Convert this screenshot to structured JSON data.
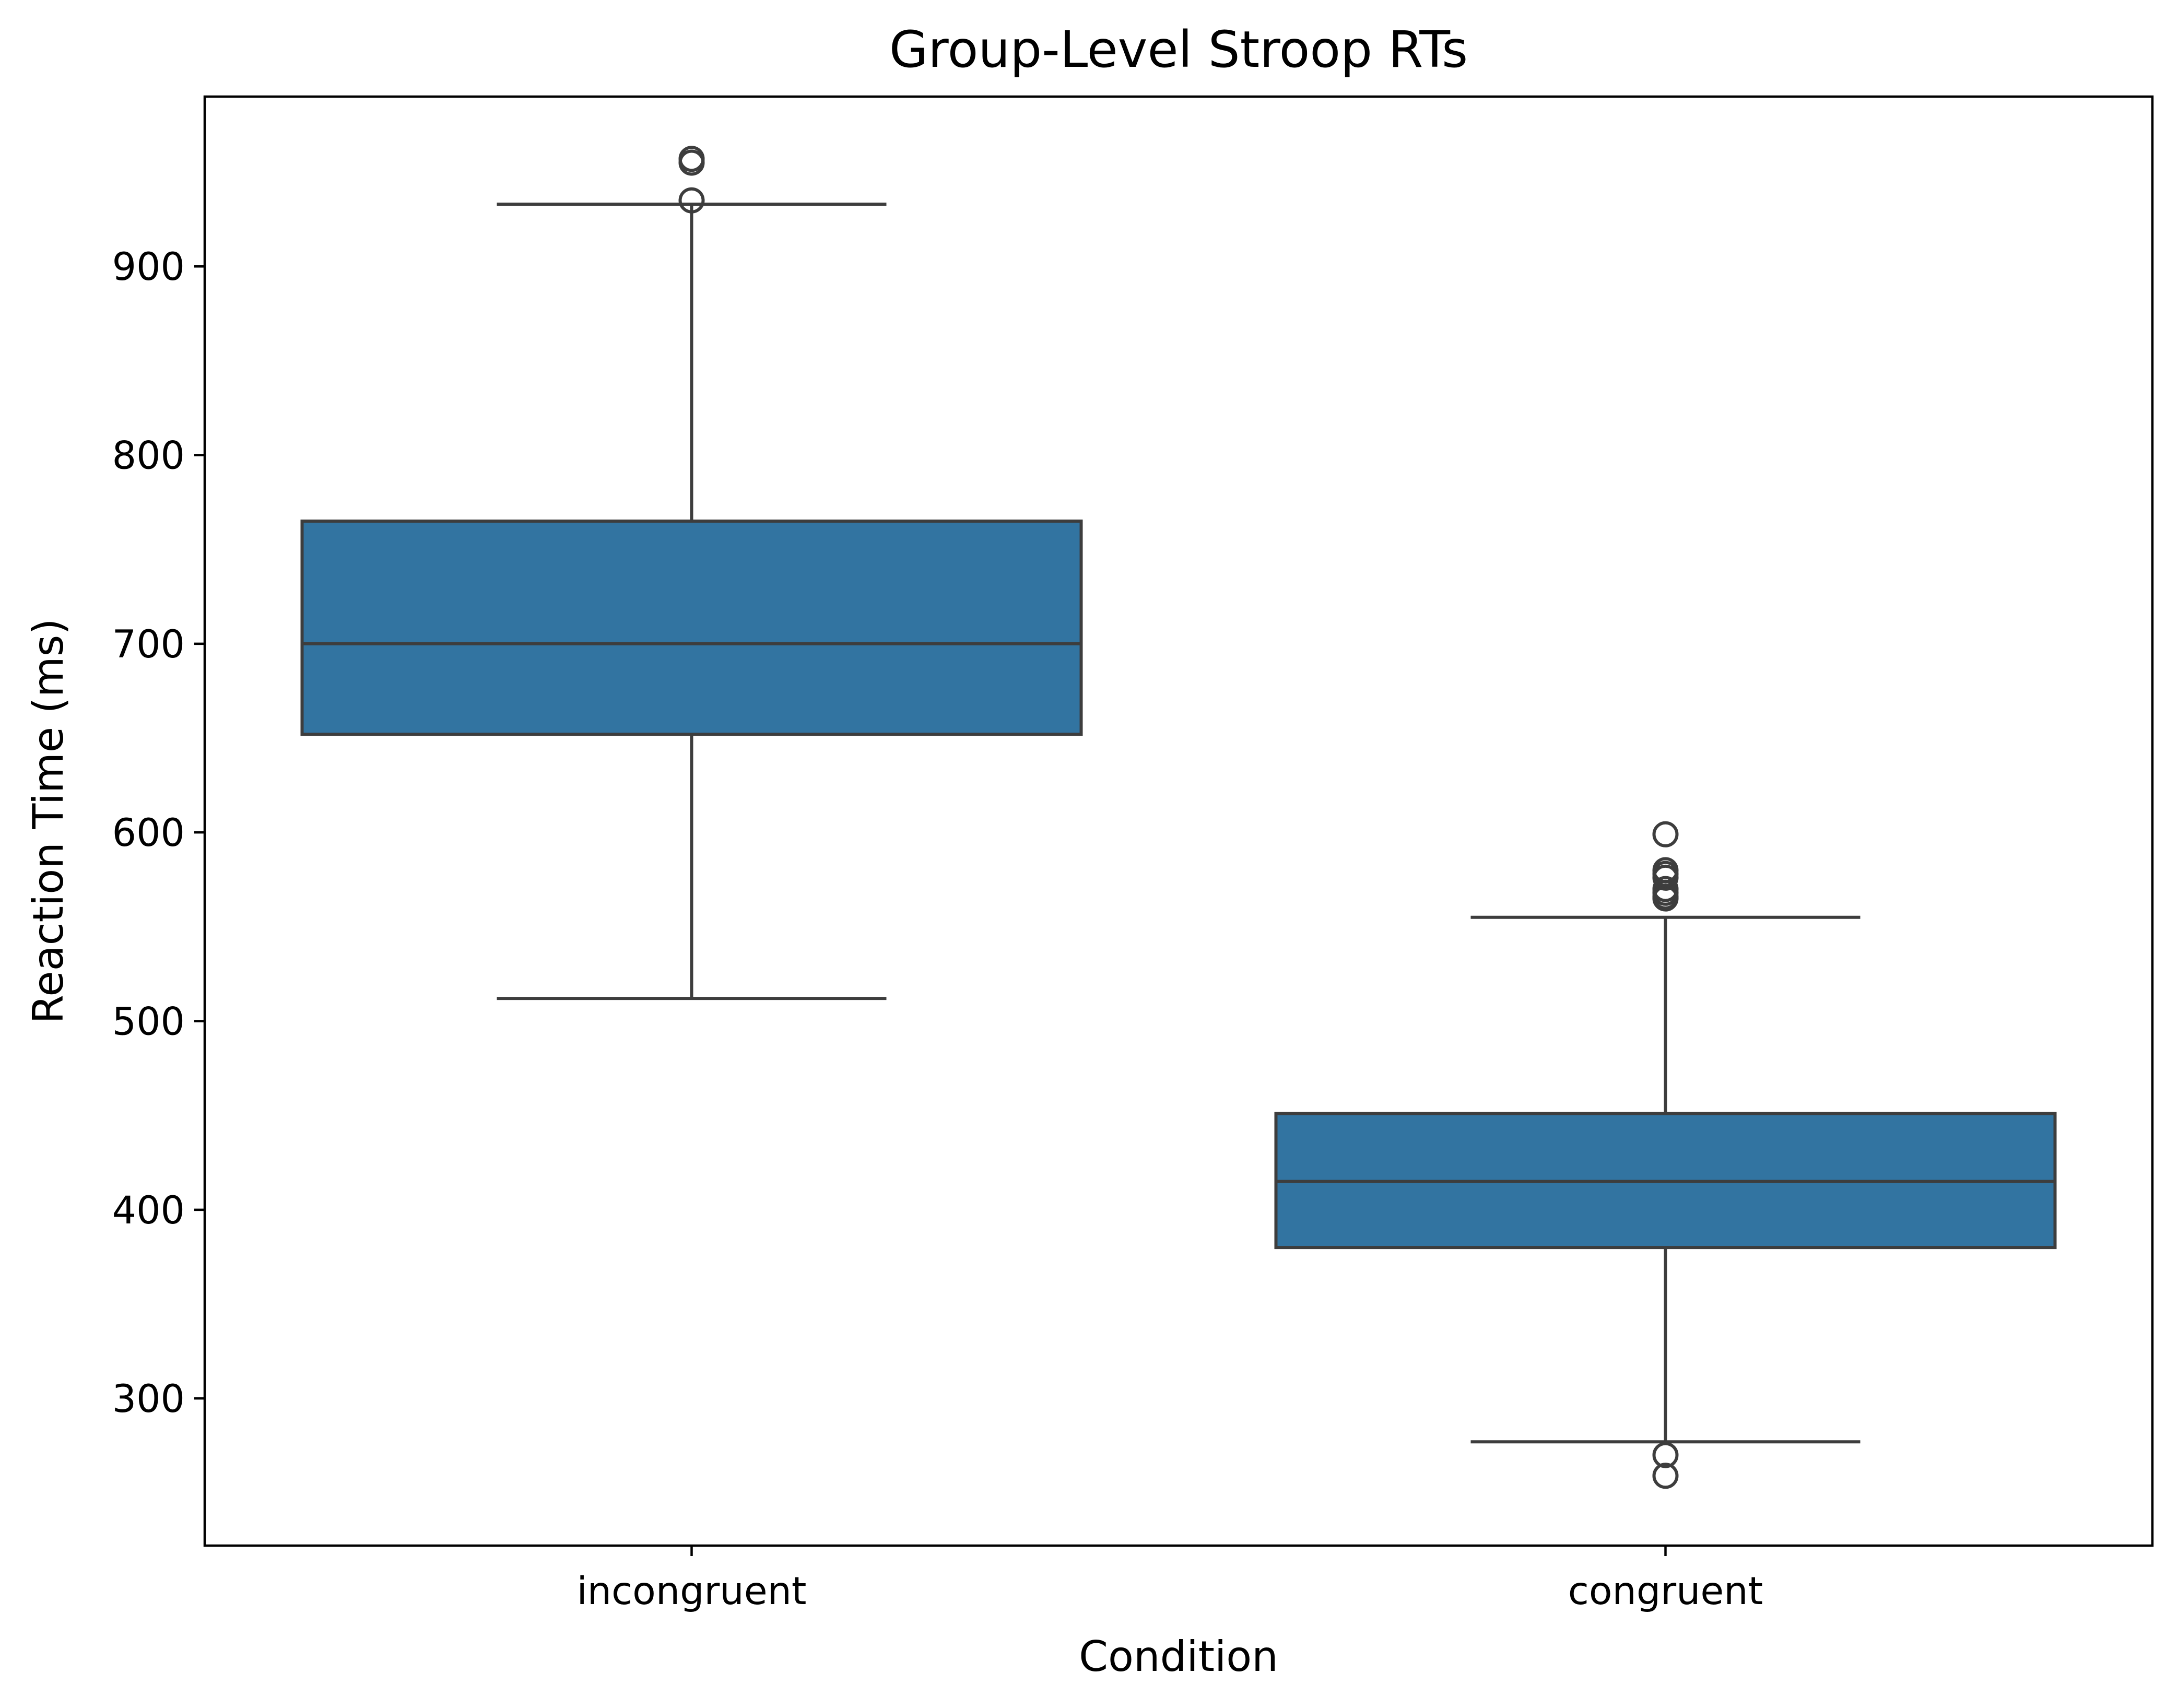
{
  "chart_data": {
    "type": "box",
    "title": "Group-Level Stroop RTs",
    "xlabel": "Condition",
    "ylabel": "Reaction Time (ms)",
    "ylim": [
      222,
      990
    ],
    "yticks": [
      300,
      400,
      500,
      600,
      700,
      800,
      900
    ],
    "ytick_labels": [
      "300",
      "400",
      "500",
      "600",
      "700",
      "800",
      "900"
    ],
    "grid": false,
    "categories": [
      "incongruent",
      "congruent"
    ],
    "boxes": [
      {
        "category": "incongruent",
        "whisker_low": 512,
        "q1": 652,
        "median": 700,
        "q3": 765,
        "whisker_high": 933,
        "outliers": [
          935,
          955,
          957
        ]
      },
      {
        "category": "congruent",
        "whisker_low": 277,
        "q1": 380,
        "median": 415,
        "q3": 451,
        "whisker_high": 555,
        "outliers": [
          259,
          270,
          565,
          566,
          568,
          570,
          576,
          578,
          580,
          599
        ]
      }
    ],
    "colors": {
      "box_fill": "#3274a1",
      "line": "#3d3d3d",
      "axis": "#000000"
    }
  }
}
